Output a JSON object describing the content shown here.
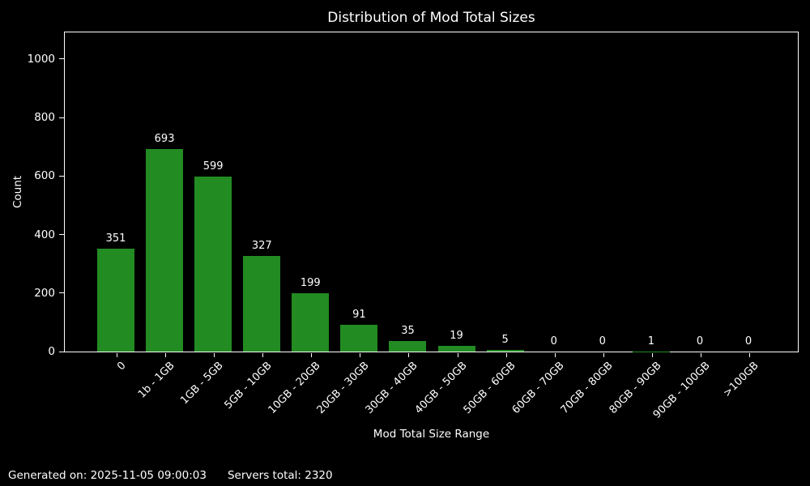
{
  "chart_data": {
    "type": "bar",
    "title": "Distribution of Mod Total Sizes",
    "xlabel": "Mod Total Size Range",
    "ylabel": "Count",
    "categories": [
      "0",
      "1b - 1GB",
      "1GB - 5GB",
      "5GB - 10GB",
      "10GB - 20GB",
      "20GB - 30GB",
      "30GB - 40GB",
      "40GB - 50GB",
      "50GB - 60GB",
      "60GB - 70GB",
      "70GB - 80GB",
      "80GB - 90GB",
      "90GB - 100GB",
      ">100GB"
    ],
    "values": [
      351,
      693,
      599,
      327,
      199,
      91,
      35,
      19,
      5,
      0,
      0,
      1,
      0,
      0
    ],
    "yticks": [
      0,
      200,
      400,
      600,
      800,
      1000
    ],
    "ylim": [
      0,
      1091
    ],
    "grid": false,
    "legend": null,
    "bar_color": "#228B22",
    "background_color": "#000000",
    "text_color": "#ffffff"
  },
  "footer": {
    "generated": "Generated on: 2025-11-05 09:00:03",
    "servers_total": "Servers total: 2320"
  }
}
